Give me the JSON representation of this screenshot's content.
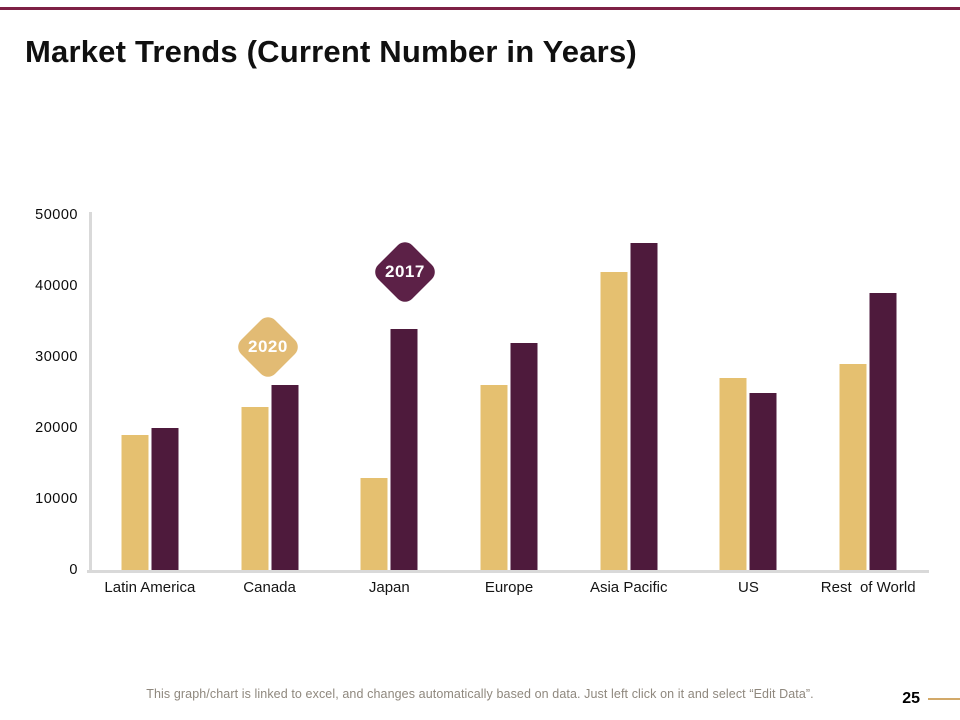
{
  "slide": {
    "title": "Market Trends (Current Number in Years)",
    "page_number": "25",
    "footer_note": "This graph/chart is linked to excel, and changes automatically based on data. Just left click on it and select “Edit Data”.",
    "footer_text_color": "#8f887e",
    "top_accent_color": "#7e2045",
    "page_line_color": "#d2a969"
  },
  "chart_data": {
    "type": "bar",
    "title": "Market Trends (Current Number in Years)",
    "categories": [
      "Latin America",
      "Canada",
      "Japan",
      "Europe",
      "Asia Pacific",
      "US",
      "Rest  of World"
    ],
    "series": [
      {
        "name": "2020",
        "color": "#e5c070",
        "values": [
          19000,
          23000,
          13000,
          26000,
          42000,
          27000,
          29000
        ]
      },
      {
        "name": "2017",
        "color": "#4e1a3c",
        "values": [
          20000,
          26000,
          34000,
          32000,
          46000,
          25000,
          39000
        ]
      }
    ],
    "xlabel": "",
    "ylabel": "",
    "ylim": [
      0,
      50000
    ],
    "yticks": [
      "0",
      "10000",
      "20000",
      "30000",
      "40000",
      "50000"
    ],
    "grid": false,
    "legend": {
      "style": "diamond-callouts",
      "items": [
        {
          "label": "2020",
          "fill": "#e2bb74",
          "text_color": "#ffffff",
          "anchored_above": "Canada"
        },
        {
          "label": "2017",
          "fill": "#5c2147",
          "text_color": "#ffffff",
          "anchored_above": "Japan"
        }
      ]
    }
  }
}
